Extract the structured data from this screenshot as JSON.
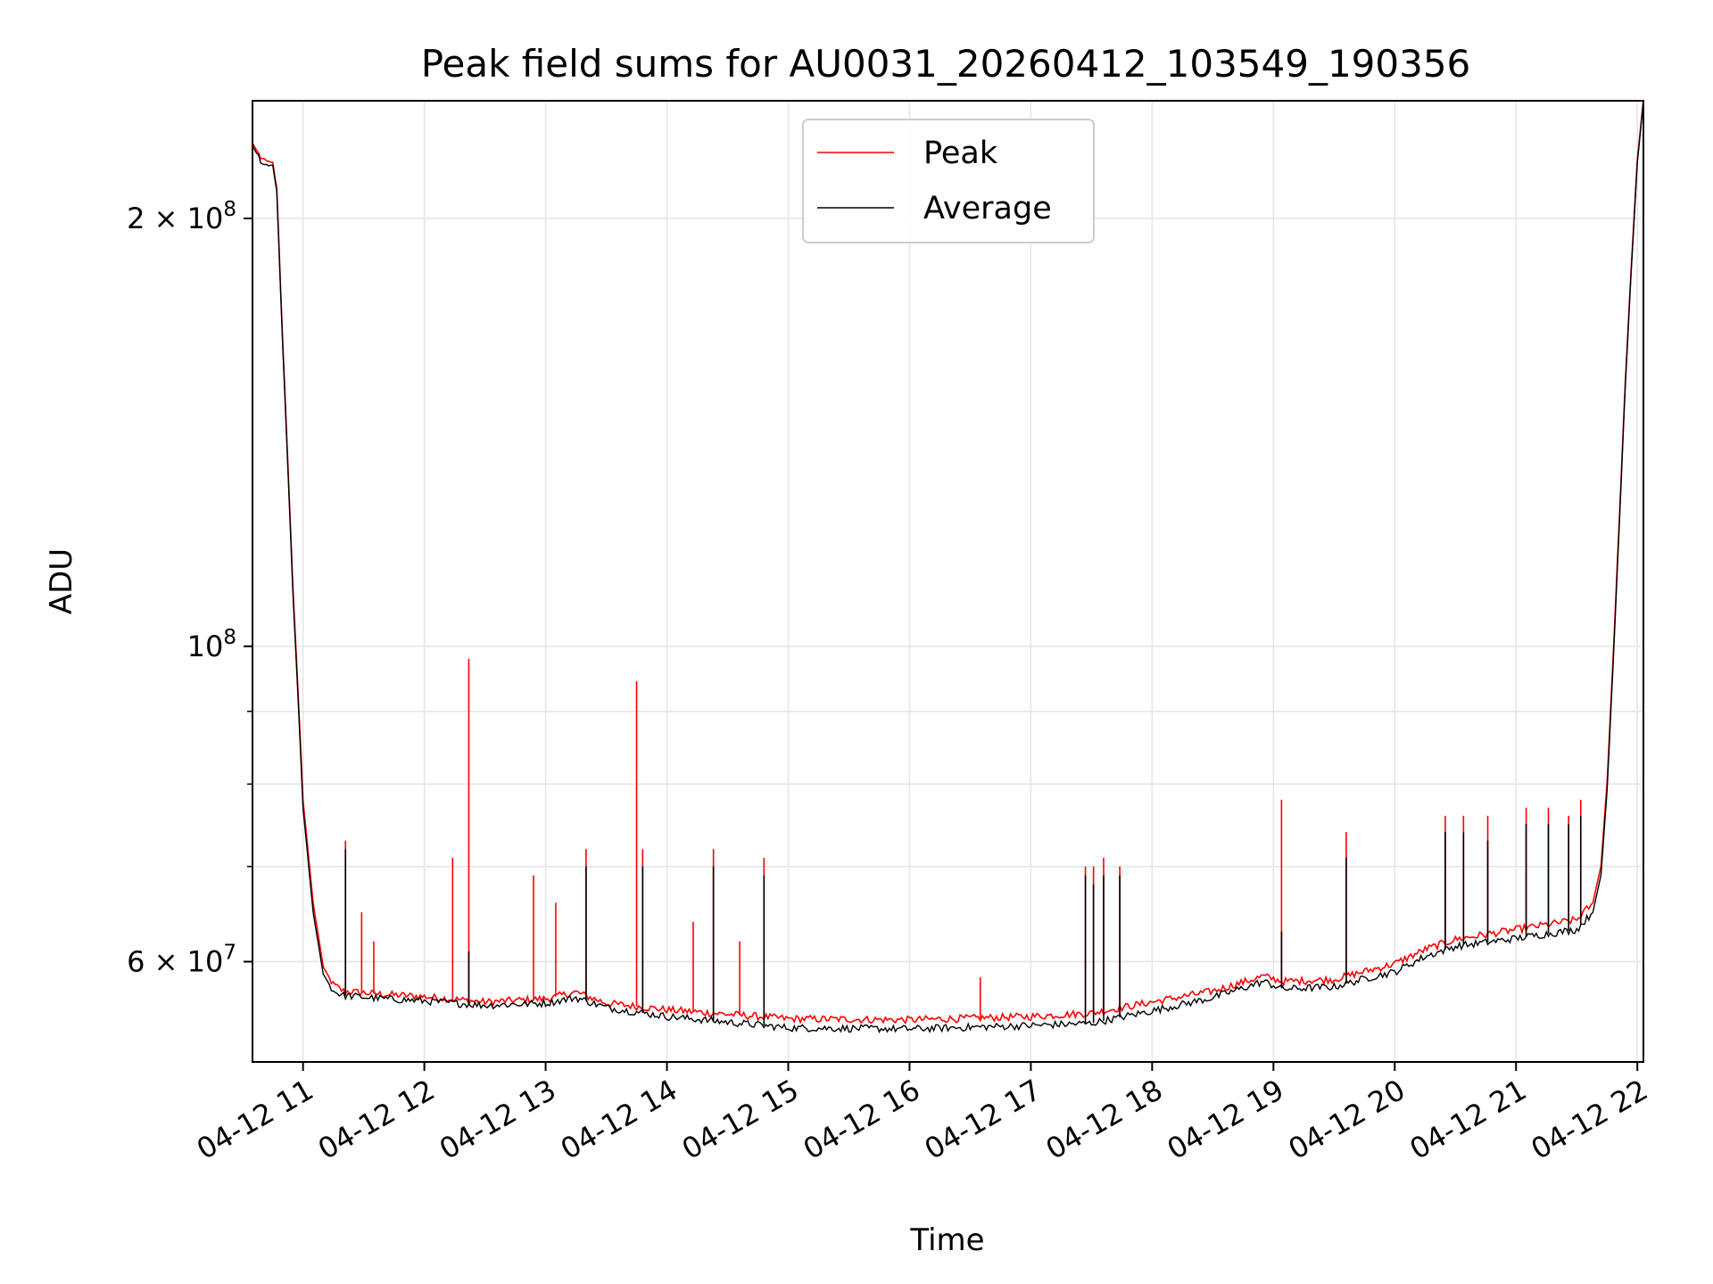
{
  "chart_data": {
    "type": "line",
    "title": "Peak field sums for AU0031_20260412_103549_190356",
    "xlabel": "Time",
    "ylabel": "ADU",
    "y_scale": "log",
    "ylim": [
      51000000,
      242000000
    ],
    "xlim": [
      "2026-04-12 10:35",
      "2026-04-12 22:03"
    ],
    "grid": true,
    "legend_position": "top-center",
    "x_ticks": [
      {
        "t": "2026-04-12 11:00",
        "label": "04-12 11"
      },
      {
        "t": "2026-04-12 12:00",
        "label": "04-12 12"
      },
      {
        "t": "2026-04-12 13:00",
        "label": "04-12 13"
      },
      {
        "t": "2026-04-12 14:00",
        "label": "04-12 14"
      },
      {
        "t": "2026-04-12 15:00",
        "label": "04-12 15"
      },
      {
        "t": "2026-04-12 16:00",
        "label": "04-12 16"
      },
      {
        "t": "2026-04-12 17:00",
        "label": "04-12 17"
      },
      {
        "t": "2026-04-12 18:00",
        "label": "04-12 18"
      },
      {
        "t": "2026-04-12 19:00",
        "label": "04-12 19"
      },
      {
        "t": "2026-04-12 20:00",
        "label": "04-12 20"
      },
      {
        "t": "2026-04-12 21:00",
        "label": "04-12 21"
      },
      {
        "t": "2026-04-12 22:00",
        "label": "04-12 22"
      }
    ],
    "y_ticks_major": [
      {
        "value": 200000000,
        "mantissa": "2",
        "exp": "8"
      },
      {
        "value": 100000000,
        "mantissa": "",
        "exp": "8"
      },
      {
        "value": 60000000,
        "mantissa": "6",
        "exp": "7"
      }
    ],
    "y_ticks_minor": [
      70000000,
      80000000,
      90000000
    ],
    "series": [
      {
        "name": "Peak",
        "color": "#ff0000",
        "points": [
          [
            "2026-04-12 10:35",
            226000000
          ],
          [
            "2026-04-12 10:38",
            222000000
          ],
          [
            "2026-04-12 10:41",
            219000000
          ],
          [
            "2026-04-12 10:45",
            219000000
          ],
          [
            "2026-04-12 10:47",
            210000000
          ],
          [
            "2026-04-12 10:50",
            163000000
          ],
          [
            "2026-04-12 10:52",
            140000000
          ],
          [
            "2026-04-12 10:55",
            110000000
          ],
          [
            "2026-04-12 10:58",
            90000000
          ],
          [
            "2026-04-12 11:00",
            78000000
          ],
          [
            "2026-04-12 11:05",
            66000000
          ],
          [
            "2026-04-12 11:10",
            59500000
          ],
          [
            "2026-04-12 11:15",
            57800000
          ],
          [
            "2026-04-12 11:20",
            57200000
          ],
          [
            "2026-04-12 11:40",
            56900000
          ],
          [
            "2026-04-12 12:00",
            56700000
          ],
          [
            "2026-04-12 12:30",
            56200000
          ],
          [
            "2026-04-12 13:00",
            56500000
          ],
          [
            "2026-04-12 13:15",
            57100000
          ],
          [
            "2026-04-12 13:30",
            56100000
          ],
          [
            "2026-04-12 14:00",
            55500000
          ],
          [
            "2026-04-12 14:30",
            55100000
          ],
          [
            "2026-04-12 15:00",
            54700000
          ],
          [
            "2026-04-12 16:00",
            54600000
          ],
          [
            "2026-04-12 17:00",
            54900000
          ],
          [
            "2026-04-12 17:30",
            55200000
          ],
          [
            "2026-04-12 18:00",
            56200000
          ],
          [
            "2026-04-12 18:30",
            57200000
          ],
          [
            "2026-04-12 18:55",
            58600000
          ],
          [
            "2026-04-12 19:05",
            58100000
          ],
          [
            "2026-04-12 19:30",
            58300000
          ],
          [
            "2026-04-12 19:50",
            59300000
          ],
          [
            "2026-04-12 20:00",
            59800000
          ],
          [
            "2026-04-12 20:15",
            61200000
          ],
          [
            "2026-04-12 20:30",
            62200000
          ],
          [
            "2026-04-12 21:00",
            63200000
          ],
          [
            "2026-04-12 21:30",
            64200000
          ],
          [
            "2026-04-12 21:38",
            66000000
          ],
          [
            "2026-04-12 21:42",
            70000000
          ],
          [
            "2026-04-12 21:45",
            80000000
          ],
          [
            "2026-04-12 21:48",
            98000000
          ],
          [
            "2026-04-12 21:51",
            122000000
          ],
          [
            "2026-04-12 21:54",
            153000000
          ],
          [
            "2026-04-12 21:57",
            185000000
          ],
          [
            "2026-04-12 22:00",
            220000000
          ],
          [
            "2026-04-12 22:03",
            242000000
          ]
        ],
        "spikes": [
          [
            "2026-04-12 11:21",
            73000000
          ],
          [
            "2026-04-12 11:29",
            65000000
          ],
          [
            "2026-04-12 11:35",
            62000000
          ],
          [
            "2026-04-12 12:14",
            71000000
          ],
          [
            "2026-04-12 12:22",
            98000000
          ],
          [
            "2026-04-12 12:54",
            69000000
          ],
          [
            "2026-04-12 13:05",
            66000000
          ],
          [
            "2026-04-12 13:20",
            72000000
          ],
          [
            "2026-04-12 13:45",
            94500000
          ],
          [
            "2026-04-12 13:48",
            72000000
          ],
          [
            "2026-04-12 14:13",
            64000000
          ],
          [
            "2026-04-12 14:23",
            72000000
          ],
          [
            "2026-04-12 14:36",
            62000000
          ],
          [
            "2026-04-12 14:48",
            71000000
          ],
          [
            "2026-04-12 16:35",
            58500000
          ],
          [
            "2026-04-12 17:27",
            70000000
          ],
          [
            "2026-04-12 17:31",
            70000000
          ],
          [
            "2026-04-12 17:36",
            71000000
          ],
          [
            "2026-04-12 17:44",
            70000000
          ],
          [
            "2026-04-12 19:04",
            78000000
          ],
          [
            "2026-04-12 19:36",
            74000000
          ],
          [
            "2026-04-12 20:25",
            76000000
          ],
          [
            "2026-04-12 20:34",
            76000000
          ],
          [
            "2026-04-12 20:46",
            76000000
          ],
          [
            "2026-04-12 21:05",
            77000000
          ],
          [
            "2026-04-12 21:16",
            77000000
          ],
          [
            "2026-04-12 21:26",
            76000000
          ],
          [
            "2026-04-12 21:32",
            78000000
          ]
        ]
      },
      {
        "name": "Average",
        "color": "#000000",
        "points": [
          [
            "2026-04-12 10:35",
            225000000
          ],
          [
            "2026-04-12 10:38",
            221000000
          ],
          [
            "2026-04-12 10:41",
            218000000
          ],
          [
            "2026-04-12 10:45",
            218000000
          ],
          [
            "2026-04-12 10:47",
            209000000
          ],
          [
            "2026-04-12 10:50",
            162000000
          ],
          [
            "2026-04-12 10:52",
            139000000
          ],
          [
            "2026-04-12 10:55",
            109000000
          ],
          [
            "2026-04-12 10:58",
            89000000
          ],
          [
            "2026-04-12 11:00",
            77000000
          ],
          [
            "2026-04-12 11:05",
            65000000
          ],
          [
            "2026-04-12 11:10",
            58800000
          ],
          [
            "2026-04-12 11:15",
            57200000
          ],
          [
            "2026-04-12 11:20",
            56800000
          ],
          [
            "2026-04-12 11:40",
            56500000
          ],
          [
            "2026-04-12 12:00",
            56300000
          ],
          [
            "2026-04-12 12:30",
            55900000
          ],
          [
            "2026-04-12 13:00",
            56100000
          ],
          [
            "2026-04-12 13:15",
            56600000
          ],
          [
            "2026-04-12 13:30",
            55700000
          ],
          [
            "2026-04-12 14:00",
            54900000
          ],
          [
            "2026-04-12 14:30",
            54400000
          ],
          [
            "2026-04-12 15:00",
            53900000
          ],
          [
            "2026-04-12 16:00",
            53800000
          ],
          [
            "2026-04-12 17:00",
            54100000
          ],
          [
            "2026-04-12 17:30",
            54300000
          ],
          [
            "2026-04-12 18:00",
            55400000
          ],
          [
            "2026-04-12 18:30",
            56600000
          ],
          [
            "2026-04-12 18:55",
            58100000
          ],
          [
            "2026-04-12 19:05",
            57400000
          ],
          [
            "2026-04-12 19:30",
            57600000
          ],
          [
            "2026-04-12 19:50",
            58600000
          ],
          [
            "2026-04-12 20:00",
            59000000
          ],
          [
            "2026-04-12 20:15",
            60500000
          ],
          [
            "2026-04-12 20:30",
            61500000
          ],
          [
            "2026-04-12 21:00",
            62300000
          ],
          [
            "2026-04-12 21:30",
            63200000
          ],
          [
            "2026-04-12 21:38",
            65000000
          ],
          [
            "2026-04-12 21:42",
            69000000
          ],
          [
            "2026-04-12 21:45",
            79000000
          ],
          [
            "2026-04-12 21:48",
            97000000
          ],
          [
            "2026-04-12 21:51",
            121000000
          ],
          [
            "2026-04-12 21:54",
            152000000
          ],
          [
            "2026-04-12 21:57",
            184000000
          ],
          [
            "2026-04-12 22:00",
            219000000
          ],
          [
            "2026-04-12 22:03",
            242000000
          ]
        ],
        "spikes": [
          [
            "2026-04-12 11:21",
            72000000
          ],
          [
            "2026-04-12 12:22",
            61000000
          ],
          [
            "2026-04-12 13:20",
            70000000
          ],
          [
            "2026-04-12 13:48",
            70000000
          ],
          [
            "2026-04-12 14:23",
            70000000
          ],
          [
            "2026-04-12 14:48",
            69000000
          ],
          [
            "2026-04-12 17:27",
            69000000
          ],
          [
            "2026-04-12 17:31",
            68000000
          ],
          [
            "2026-04-12 17:36",
            69000000
          ],
          [
            "2026-04-12 17:44",
            69000000
          ],
          [
            "2026-04-12 19:04",
            63000000
          ],
          [
            "2026-04-12 19:36",
            71000000
          ],
          [
            "2026-04-12 20:25",
            74000000
          ],
          [
            "2026-04-12 20:34",
            74000000
          ],
          [
            "2026-04-12 20:46",
            73000000
          ],
          [
            "2026-04-12 21:05",
            75000000
          ],
          [
            "2026-04-12 21:16",
            75000000
          ],
          [
            "2026-04-12 21:26",
            75000000
          ],
          [
            "2026-04-12 21:32",
            76000000
          ]
        ]
      }
    ]
  }
}
